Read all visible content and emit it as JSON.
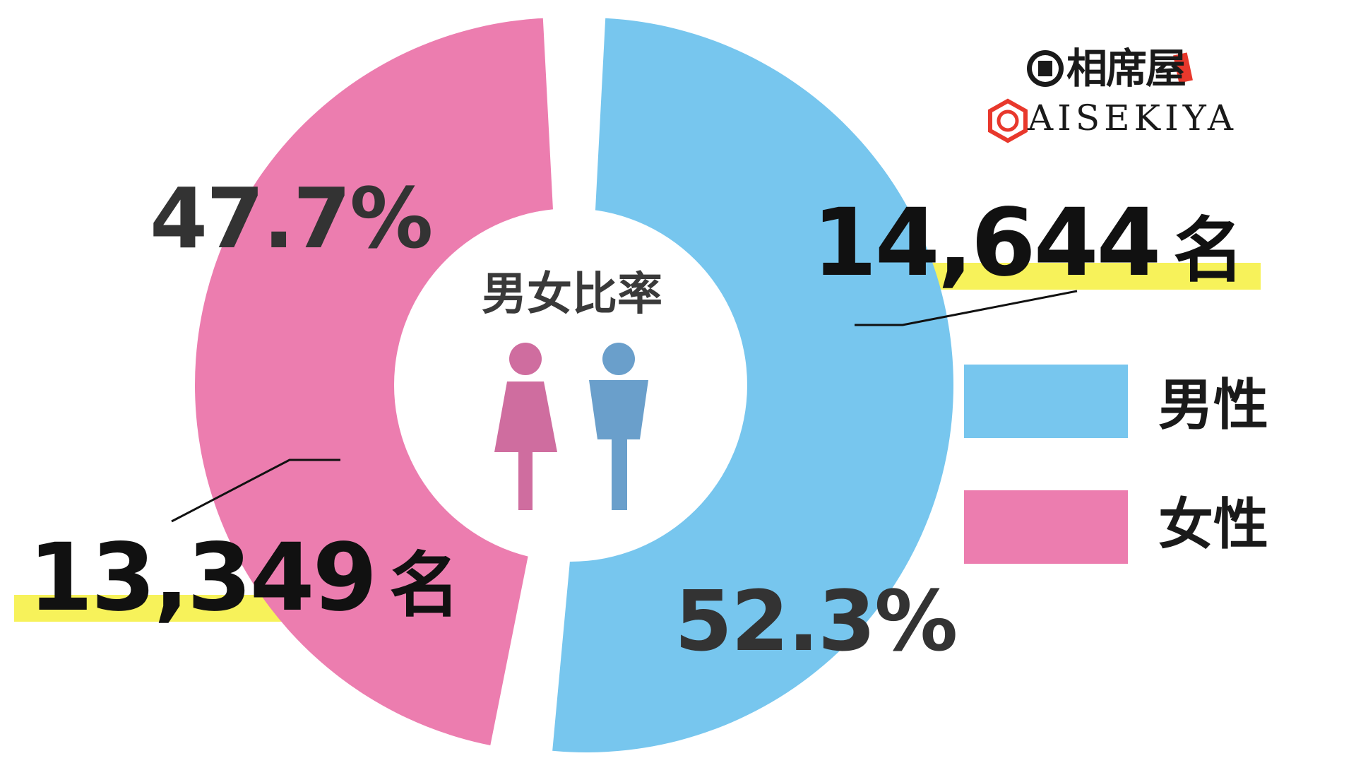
{
  "brand": {
    "name_jp": "相席屋",
    "name_en": "AISEKIYA",
    "accent_color": "#e8382c"
  },
  "center": {
    "title": "男女比率"
  },
  "legend": {
    "male_label": "男性",
    "female_label": "女性"
  },
  "labels": {
    "male_count": "14,644",
    "female_count": "13,349",
    "unit": "名",
    "male_percent": "52.3%",
    "female_percent": "47.7%"
  },
  "colors": {
    "male": "#77c6ee",
    "female": "#ec7daf",
    "male_icon": "#6a9fcb",
    "female_icon": "#cf6d9f",
    "highlight": "#f7f25a",
    "text": "#333333"
  },
  "chart_data": {
    "type": "pie",
    "title": "男女比率",
    "categories": [
      "男性",
      "女性"
    ],
    "values": [
      52.3,
      47.7
    ],
    "counts": [
      14644,
      13349
    ],
    "legend": "right",
    "donut": true,
    "exploded": true
  }
}
